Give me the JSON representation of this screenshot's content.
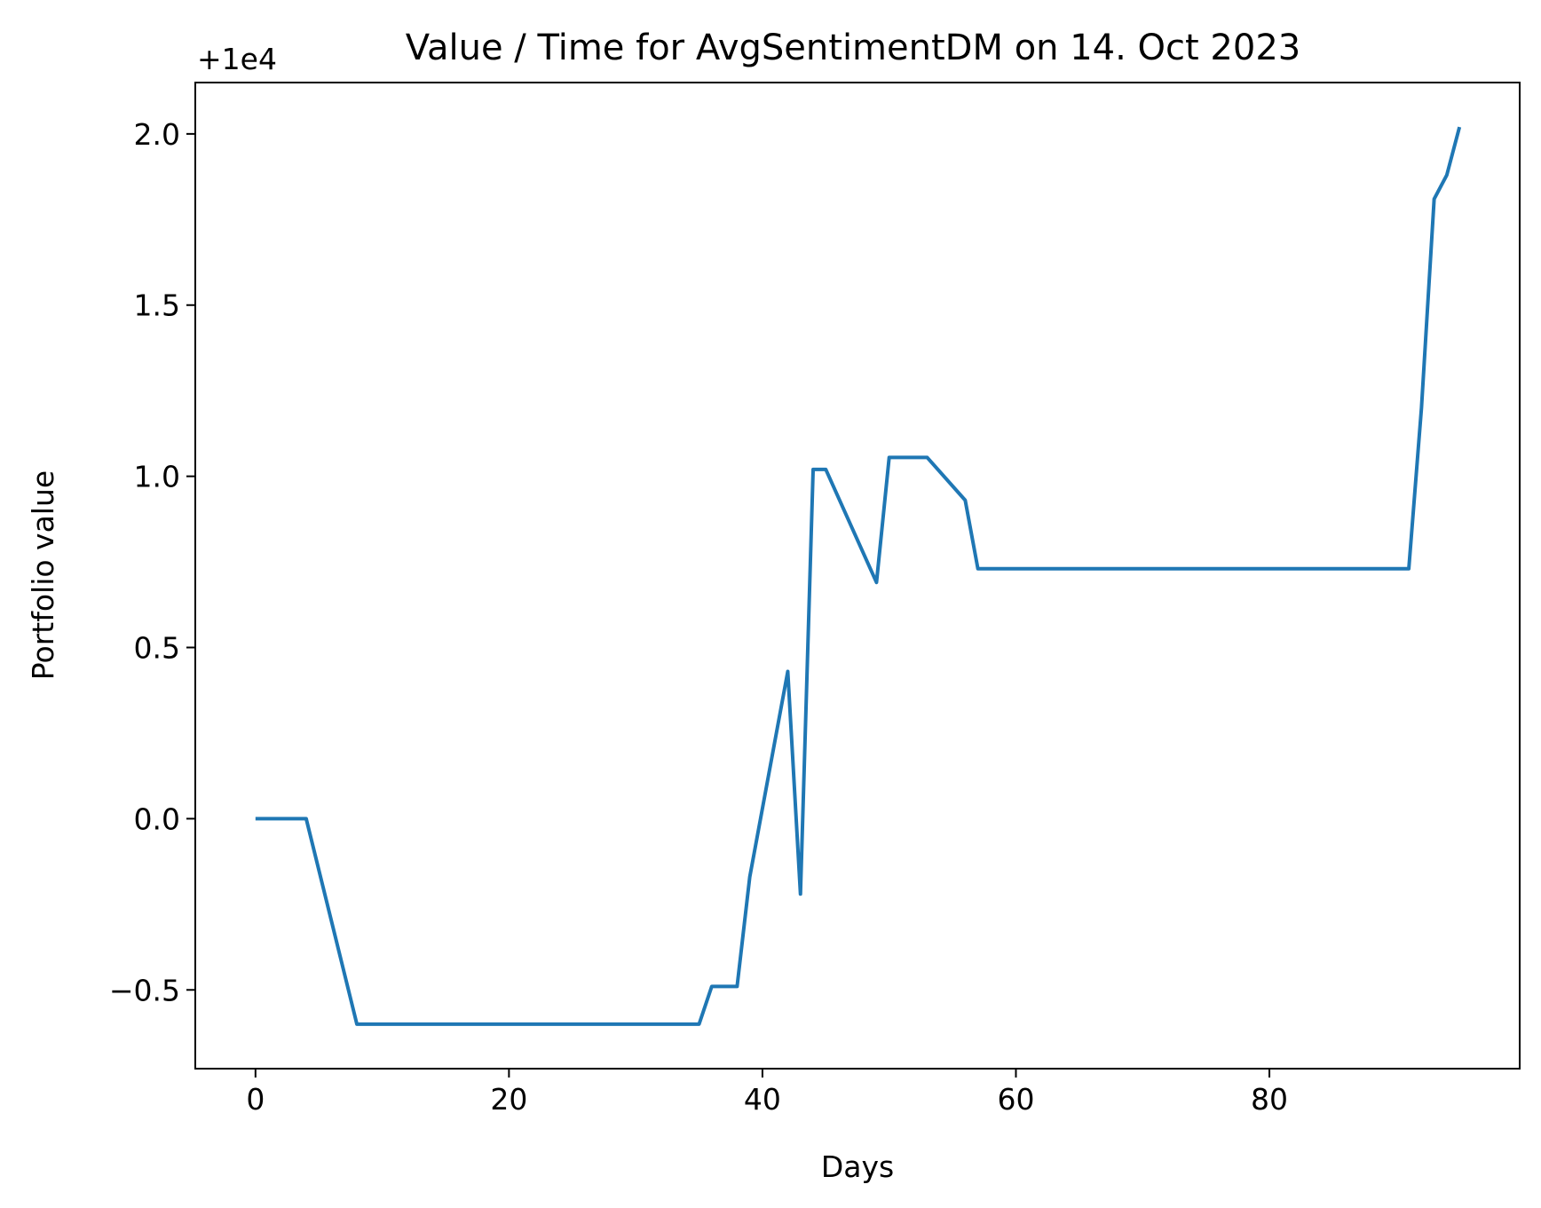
{
  "chart_data": {
    "type": "line",
    "title": "Value / Time for AvgSentimentDM on 14. Oct 2023",
    "xlabel": "Days",
    "ylabel": "Portfolio value",
    "y_offset_label": "+1e4",
    "xlim": [
      -4.75,
      99.75
    ],
    "ylim": [
      -0.73,
      2.15
    ],
    "xticks": [
      0,
      20,
      40,
      60,
      80
    ],
    "xtick_labels": [
      "0",
      "20",
      "40",
      "60",
      "80"
    ],
    "yticks": [
      -0.5,
      0.0,
      0.5,
      1.0,
      1.5,
      2.0
    ],
    "ytick_labels": [
      "−0.5",
      "0.0",
      "0.5",
      "1.0",
      "1.5",
      "2.0"
    ],
    "grid": false,
    "line_color": "#1f77b4",
    "series": [
      {
        "x": [
          0,
          4,
          8,
          35,
          36,
          38,
          39,
          42,
          43,
          44,
          45,
          49,
          50,
          53,
          56,
          57,
          91,
          92,
          93,
          94,
          95
        ],
        "values": [
          0.0,
          0.0,
          -0.6,
          -0.6,
          -0.49,
          -0.49,
          -0.17,
          0.43,
          -0.22,
          1.02,
          1.02,
          0.69,
          1.055,
          1.055,
          0.93,
          0.73,
          0.73,
          1.2,
          1.81,
          1.88,
          2.02
        ]
      }
    ]
  }
}
